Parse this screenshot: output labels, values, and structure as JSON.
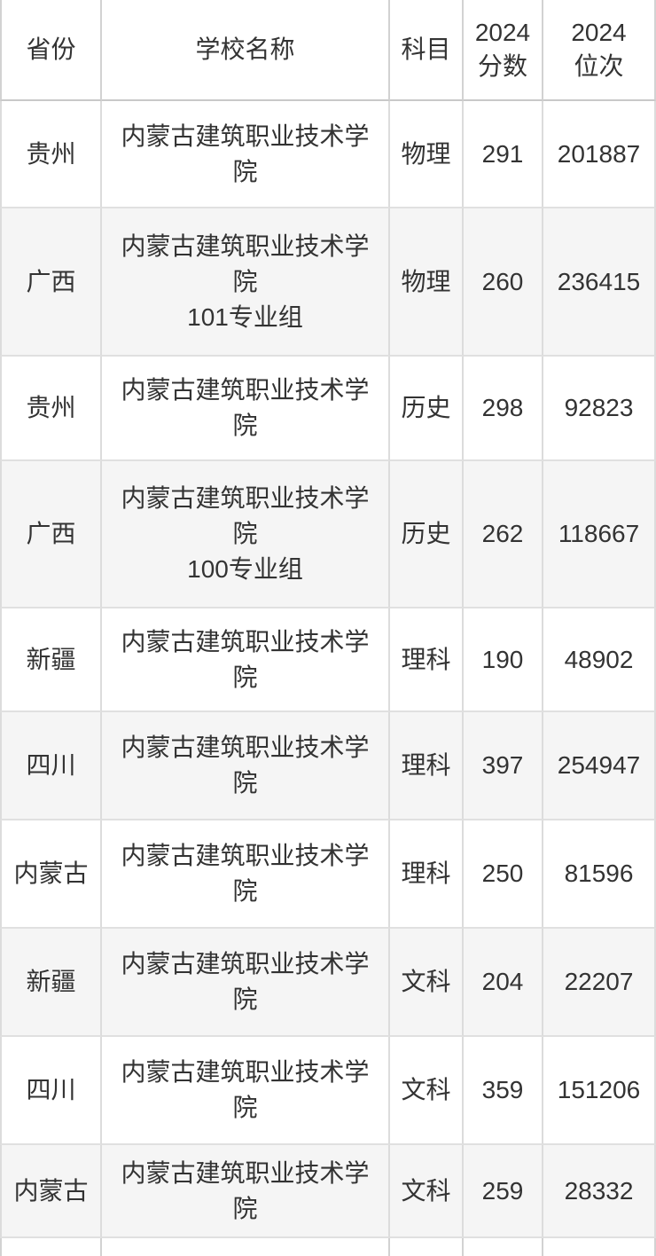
{
  "table": {
    "headers": {
      "province": "省份",
      "school": "学校名称",
      "subject": "科目",
      "score_line1": "2024",
      "score_line2": "分数",
      "rank_line1": "2024",
      "rank_line2": "位次"
    }
  },
  "rows": [
    {
      "province": "贵州",
      "school": "内蒙古建筑职业技术学院",
      "group": "",
      "subject": "物理",
      "score": "291",
      "rank": "201887"
    },
    {
      "province": "广西",
      "school": "内蒙古建筑职业技术学院",
      "group": "101专业组",
      "subject": "物理",
      "score": "260",
      "rank": "236415"
    },
    {
      "province": "贵州",
      "school": "内蒙古建筑职业技术学院",
      "group": "",
      "subject": "历史",
      "score": "298",
      "rank": "92823"
    },
    {
      "province": "广西",
      "school": "内蒙古建筑职业技术学院",
      "group": "100专业组",
      "subject": "历史",
      "score": "262",
      "rank": "118667"
    },
    {
      "province": "新疆",
      "school": "内蒙古建筑职业技术学院",
      "group": "",
      "subject": "理科",
      "score": "190",
      "rank": "48902"
    },
    {
      "province": "四川",
      "school": "内蒙古建筑职业技术学院",
      "group": "",
      "subject": "理科",
      "score": "397",
      "rank": "254947"
    },
    {
      "province": "内蒙古",
      "school": "内蒙古建筑职业技术学院",
      "group": "",
      "subject": "理科",
      "score": "250",
      "rank": "81596"
    },
    {
      "province": "新疆",
      "school": "内蒙古建筑职业技术学院",
      "group": "",
      "subject": "文科",
      "score": "204",
      "rank": "22207"
    },
    {
      "province": "四川",
      "school": "内蒙古建筑职业技术学院",
      "group": "",
      "subject": "文科",
      "score": "359",
      "rank": "151206"
    },
    {
      "province": "内蒙古",
      "school": "内蒙古建筑职业技术学院",
      "group": "",
      "subject": "文科",
      "score": "259",
      "rank": "28332"
    }
  ],
  "colors": {
    "header_bg": "#e3e3e3",
    "row_bg": "#ffffff",
    "row_alt_bg": "#f5f5f5",
    "border": "#dcdcdc",
    "header_border": "#d2d2d2",
    "text": "#333333"
  },
  "chart_data": {
    "type": "table",
    "columns": [
      "省份",
      "学校名称",
      "科目",
      "2024分数",
      "2024位次"
    ],
    "rows": [
      [
        "贵州",
        "内蒙古建筑职业技术学院",
        "物理",
        291,
        201887
      ],
      [
        "广西",
        "内蒙古建筑职业技术学院 101专业组",
        "物理",
        260,
        236415
      ],
      [
        "贵州",
        "内蒙古建筑职业技术学院",
        "历史",
        298,
        92823
      ],
      [
        "广西",
        "内蒙古建筑职业技术学院 100专业组",
        "历史",
        262,
        118667
      ],
      [
        "新疆",
        "内蒙古建筑职业技术学院",
        "理科",
        190,
        48902
      ],
      [
        "四川",
        "内蒙古建筑职业技术学院",
        "理科",
        397,
        254947
      ],
      [
        "内蒙古",
        "内蒙古建筑职业技术学院",
        "理科",
        250,
        81596
      ],
      [
        "新疆",
        "内蒙古建筑职业技术学院",
        "文科",
        204,
        22207
      ],
      [
        "四川",
        "内蒙古建筑职业技术学院",
        "文科",
        359,
        151206
      ],
      [
        "内蒙古",
        "内蒙古建筑职业技术学院",
        "文科",
        259,
        28332
      ]
    ]
  }
}
